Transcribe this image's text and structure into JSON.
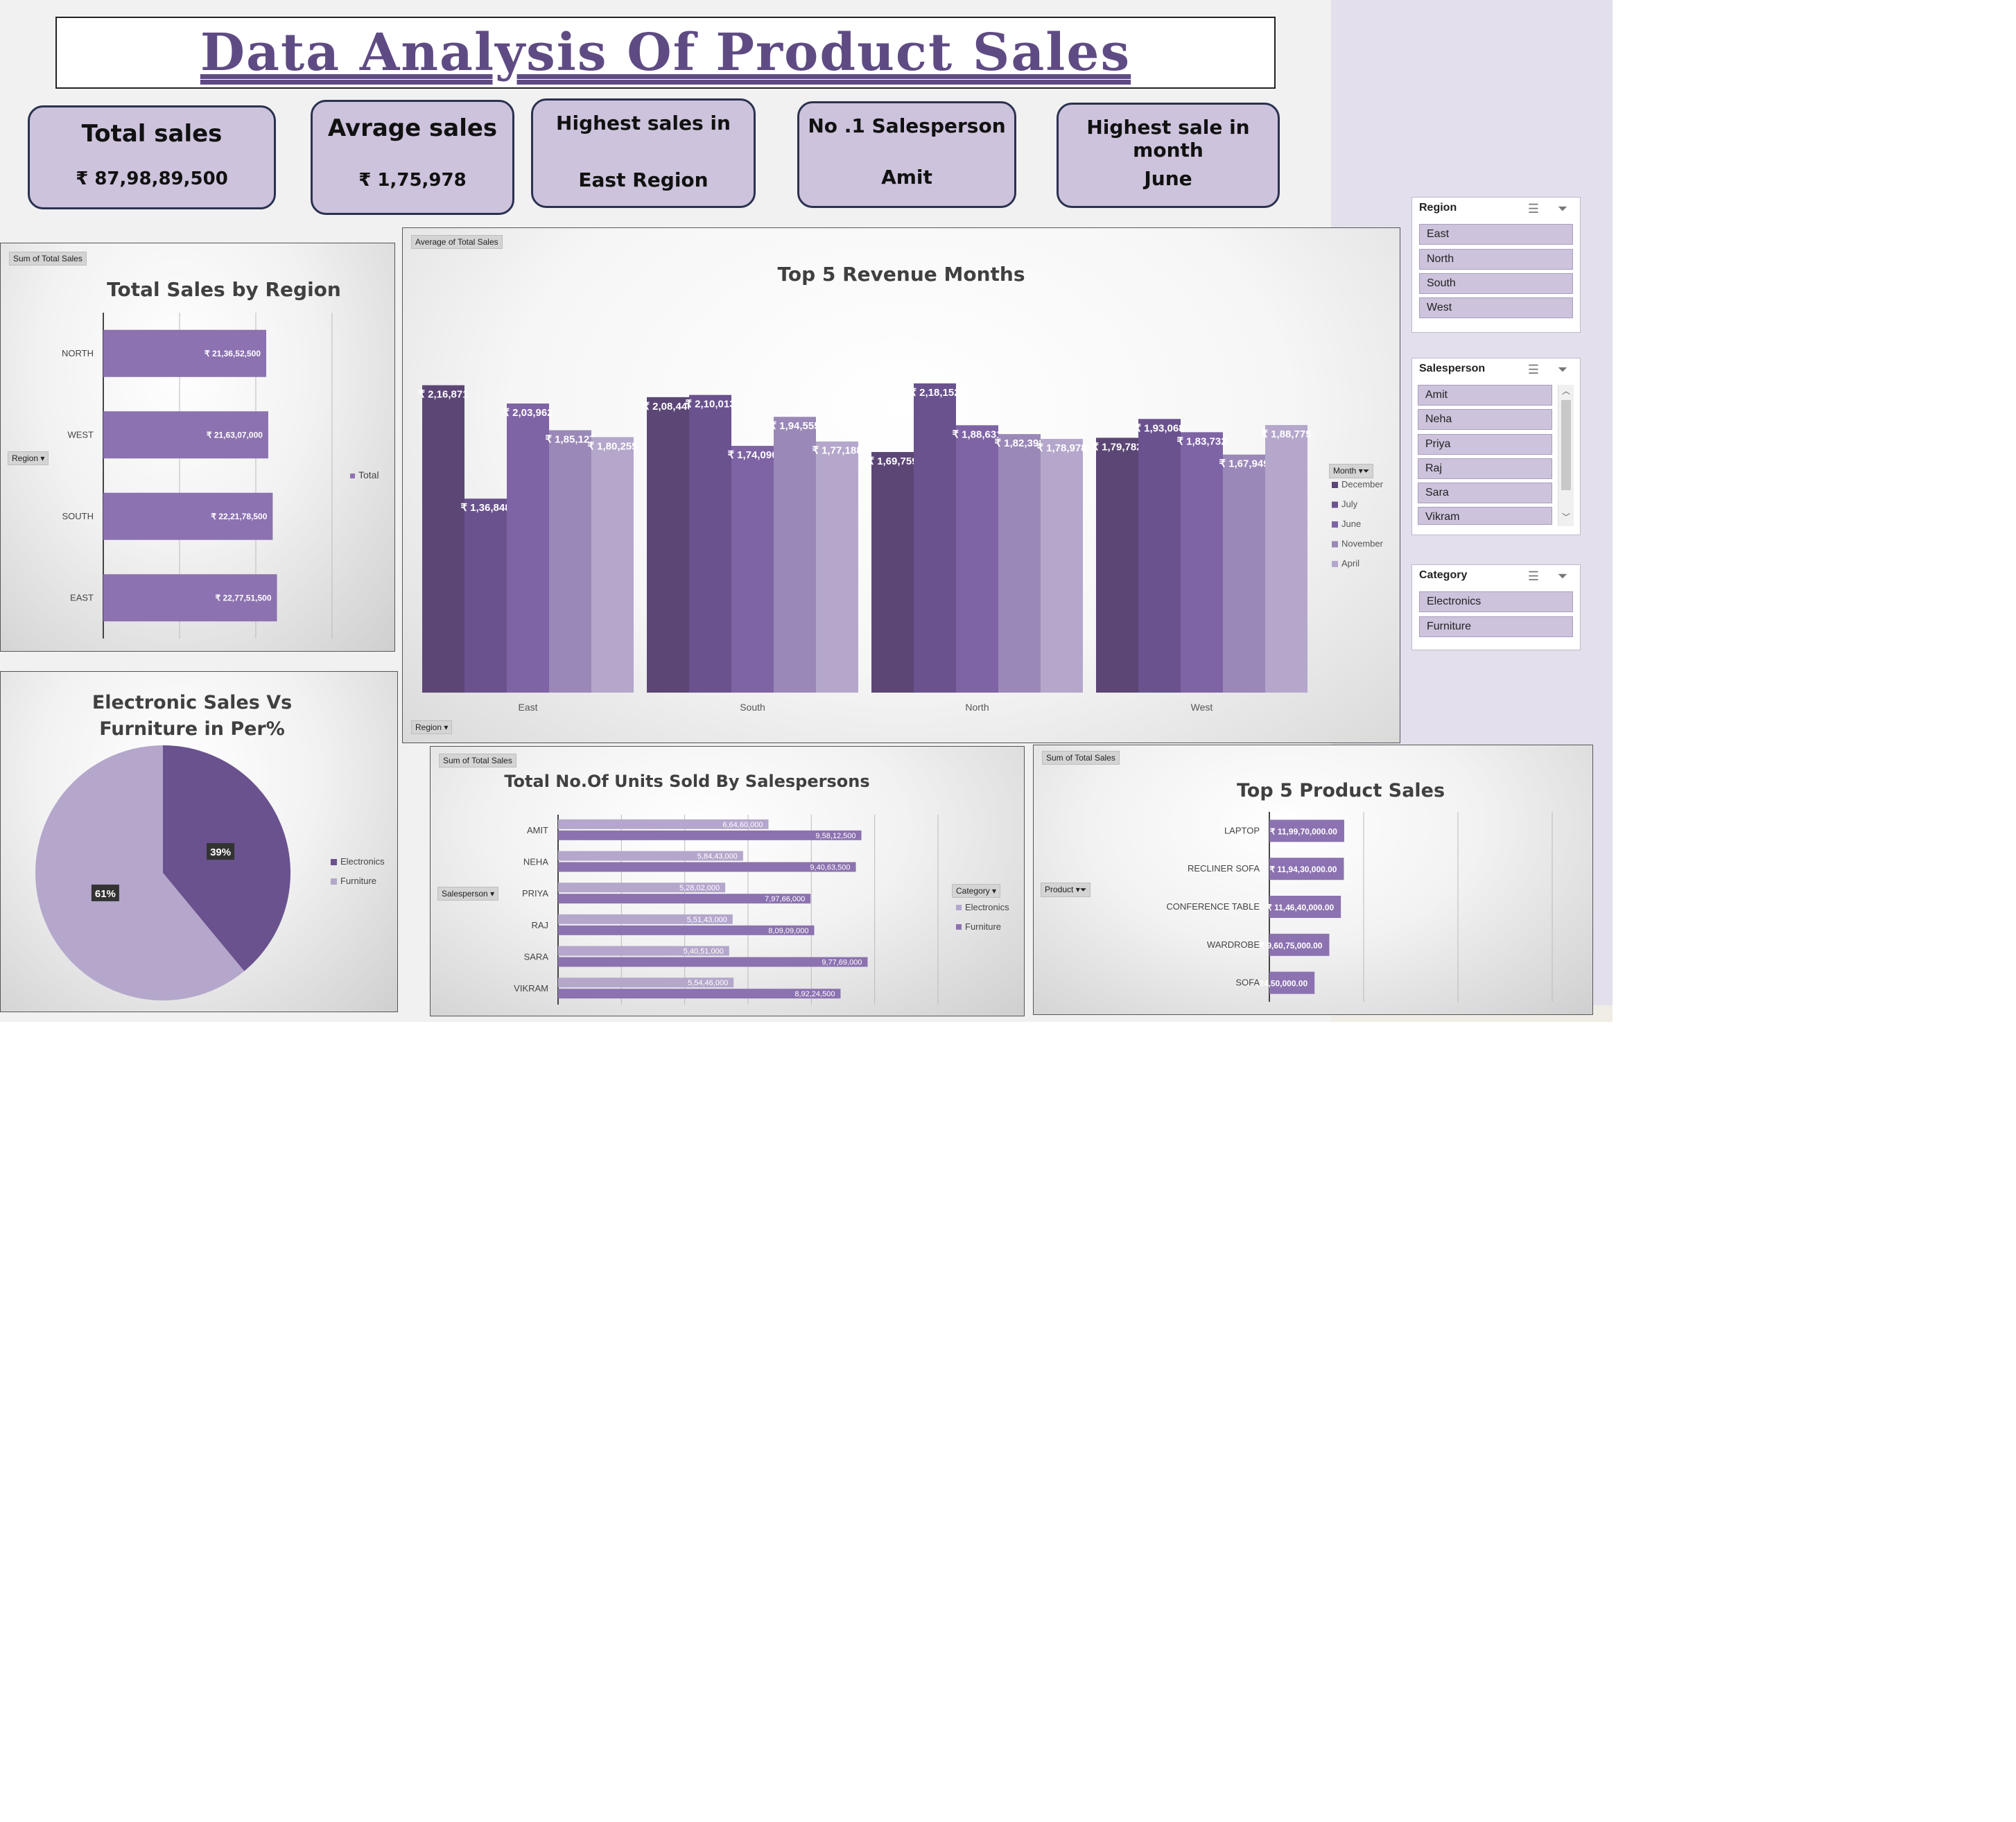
{
  "title": "Data Analysis Of Product Sales",
  "kpis": [
    {
      "label": "Total sales",
      "value": "₹ 87,98,89,500"
    },
    {
      "label": "Avrage sales",
      "value": "₹  1,75,978"
    },
    {
      "label": "Highest sales in",
      "value": "East Region"
    },
    {
      "label": "No .1 Salesperson",
      "value": "Amit"
    },
    {
      "label": "Highest sale in month",
      "value": "June"
    }
  ],
  "colors": {
    "purple_dark": "#5b4675",
    "purple_1": "#6a528e",
    "purple_2": "#7e64a4",
    "purple_3": "#9a88b8",
    "purple_4": "#b4a7cb",
    "bar": "#8c72b0",
    "card": "#cdc3dc",
    "title": "#5f4b84"
  },
  "region_chart": {
    "field": "Sum of Total Sales",
    "title": "Total Sales by Region",
    "filter": "Region",
    "legend": "Total"
  },
  "revenue_chart": {
    "field": "Average of Total Sales",
    "title": "Top 5 Revenue Months",
    "filter": "Region",
    "legend_title": "Month"
  },
  "pie_chart": {
    "title": "Electronic Sales Vs Furniture in Per%"
  },
  "units_chart": {
    "field": "Sum of Total Sales",
    "title": "Total No.Of Units Sold By Salespersons",
    "filter": "Salesperson",
    "legend_title": "Category"
  },
  "product_chart": {
    "field": "Sum of Total Sales",
    "title": "Top 5 Product Sales",
    "filter": "Product"
  },
  "slicers": {
    "region": {
      "title": "Region",
      "items": [
        "East",
        "North",
        "South",
        "West"
      ]
    },
    "salesperson": {
      "title": "Salesperson",
      "items": [
        "Amit",
        "Neha",
        "Priya",
        "Raj",
        "Sara",
        "Vikram"
      ]
    },
    "category": {
      "title": "Category",
      "items": [
        "Electronics",
        "Furniture"
      ]
    }
  },
  "chart_data": [
    {
      "type": "bar",
      "orientation": "horizontal",
      "title": "Total Sales by Region",
      "categories": [
        "NORTH",
        "WEST",
        "SOUTH",
        "EAST"
      ],
      "values": [
        213652500,
        216307000,
        222178500,
        227751500
      ],
      "labels": [
        "₹ 21,36,52,500",
        "₹ 21,63,07,000",
        "₹ 22,21,78,500",
        "₹ 22,77,51,500"
      ],
      "series": [
        {
          "name": "Total",
          "values": [
            213652500,
            216307000,
            222178500,
            227751500
          ]
        }
      ],
      "xlim": [
        0,
        400000000
      ],
      "grid": true,
      "legend": "right"
    },
    {
      "type": "bar",
      "orientation": "vertical",
      "title": "Top 5 Revenue Months",
      "categories": [
        "East",
        "South",
        "North",
        "West"
      ],
      "series": [
        {
          "name": "December",
          "values": [
            216871,
            208440,
            169759,
            179782
          ],
          "labels": [
            "₹ 2,16,871",
            "₹ 2,08,440",
            "₹ 1,69,759",
            "₹ 1,79,782"
          ]
        },
        {
          "name": "July",
          "values": [
            136848,
            210013,
            218152,
            193068
          ],
          "labels": [
            "₹ 1,36,848",
            "₹ 2,10,013",
            "₹ 2,18,152",
            "₹ 1,93,068"
          ]
        },
        {
          "name": "June",
          "values": [
            203962,
            174090,
            188631,
            183732
          ],
          "labels": [
            "₹ 2,03,962",
            "₹ 1,74,090",
            "₹ 1,88,631",
            "₹ 1,83,732"
          ]
        },
        {
          "name": "November",
          "values": [
            185127,
            194555,
            182398,
            167949
          ],
          "labels": [
            "₹ 1,85,127",
            "₹ 1,94,555",
            "₹ 1,82,398",
            "₹ 1,67,949"
          ]
        },
        {
          "name": "April",
          "values": [
            180255,
            177188,
            178978,
            188775
          ],
          "labels": [
            "₹ 1,80,255",
            "₹ 1,77,188",
            "₹ 1,78,978",
            "₹ 1,88,775"
          ]
        }
      ],
      "ylim": [
        0,
        225000
      ],
      "legend": "right"
    },
    {
      "type": "pie",
      "title": "Electronic Sales Vs Furniture in Per%",
      "series": [
        {
          "name": "Electronics",
          "value": 39,
          "label": "39%"
        },
        {
          "name": "Furniture",
          "value": 61,
          "label": "61%"
        }
      ],
      "legend": "right"
    },
    {
      "type": "bar",
      "orientation": "horizontal",
      "title": "Total No.Of Units Sold By Salespersons",
      "categories": [
        "AMIT",
        "NEHA",
        "PRIYA",
        "RAJ",
        "SARA",
        "VIKRAM"
      ],
      "series": [
        {
          "name": "Electronics",
          "values": [
            66460000,
            58443000,
            52802000,
            55143000,
            54051000,
            55446000
          ],
          "labels": [
            "6,64,60,000",
            "5,84,43,000",
            "5,28,02,000",
            "5,51,43,000",
            "5,40,51,000",
            "5,54,46,000"
          ]
        },
        {
          "name": "Furniture",
          "values": [
            95812500,
            94063500,
            79766000,
            80909000,
            97769000,
            89224500
          ],
          "labels": [
            "9,58,12,500",
            "9,40,63,500",
            "7,97,66,000",
            "8,09,09,000",
            "9,77,69,000",
            "8,92,24,500"
          ]
        }
      ],
      "xlim": [
        0,
        120000000
      ],
      "grid": true,
      "legend": "right"
    },
    {
      "type": "bar",
      "orientation": "horizontal",
      "title": "Top 5 Product Sales",
      "categories": [
        "LAPTOP",
        "RECLINER SOFA",
        "CONFERENCE TABLE",
        "WARDROBE",
        "SOFA"
      ],
      "values": [
        119970000,
        119430000,
        114640000,
        96075000,
        72450000
      ],
      "labels": [
        "₹ 11,99,70,000.00",
        "₹ 11,94,30,000.00",
        "₹ 11,46,40,000.00",
        "₹ 9,60,75,000.00",
        "₹ 7,24,50,000.00"
      ],
      "xlim": [
        0,
        300000000
      ],
      "grid": true
    }
  ]
}
